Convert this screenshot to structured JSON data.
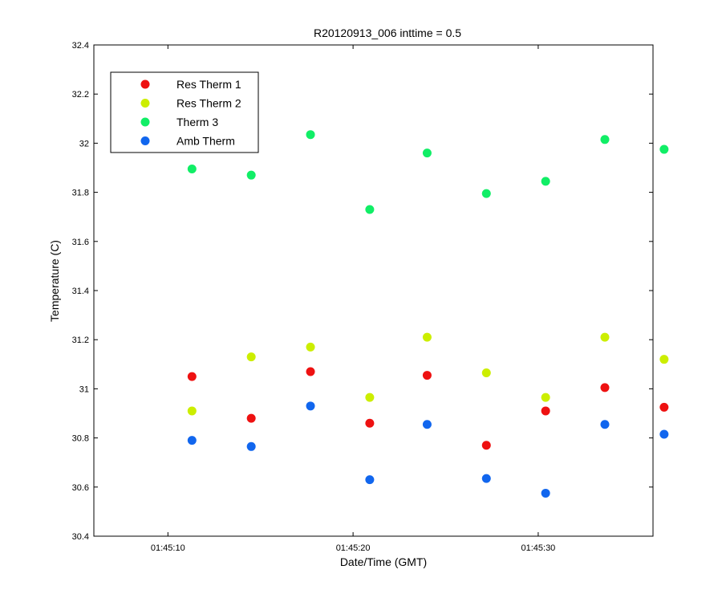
{
  "chart_data": {
    "type": "scatter",
    "title": "R20120913_006 inttime = 0.5",
    "xlabel": "Date/Time (GMT)",
    "ylabel": "Temperature (C)",
    "x_unit": "time (HH:MM:SS, GMT)",
    "xlim": [
      "01:45:06.0",
      "01:45:36.2"
    ],
    "ylim": [
      30.4,
      32.4
    ],
    "x_ticks": [
      "01:45:10",
      "01:45:20",
      "01:45:30"
    ],
    "y_ticks": [
      "30.4",
      "30.6",
      "30.8",
      "31",
      "31.2",
      "31.4",
      "31.6",
      "31.8",
      "32",
      "32.2",
      "32.4"
    ],
    "grid": false,
    "legend_position": "top-left",
    "x": [
      "01:45:11.3",
      "01:45:14.5",
      "01:45:17.7",
      "01:45:20.9",
      "01:45:24.0",
      "01:45:27.2",
      "01:45:30.4",
      "01:45:33.6",
      "01:45:36.8"
    ],
    "series": [
      {
        "name": "Res Therm 1",
        "color": "#ee1111",
        "values": [
          31.05,
          30.88,
          31.07,
          30.86,
          31.055,
          30.77,
          30.91,
          31.005,
          30.925
        ]
      },
      {
        "name": "Res Therm 2",
        "color": "#ccee00",
        "values": [
          30.91,
          31.13,
          31.17,
          30.965,
          31.21,
          31.065,
          30.965,
          31.21,
          31.12
        ]
      },
      {
        "name": "Therm 3",
        "color": "#11ee66",
        "values": [
          31.895,
          31.87,
          32.035,
          31.73,
          31.96,
          31.795,
          31.845,
          32.015,
          31.975
        ]
      },
      {
        "name": "Amb Therm",
        "color": "#1166ee",
        "values": [
          30.79,
          30.765,
          30.93,
          30.63,
          30.855,
          30.635,
          30.575,
          30.855,
          30.815
        ]
      }
    ]
  }
}
